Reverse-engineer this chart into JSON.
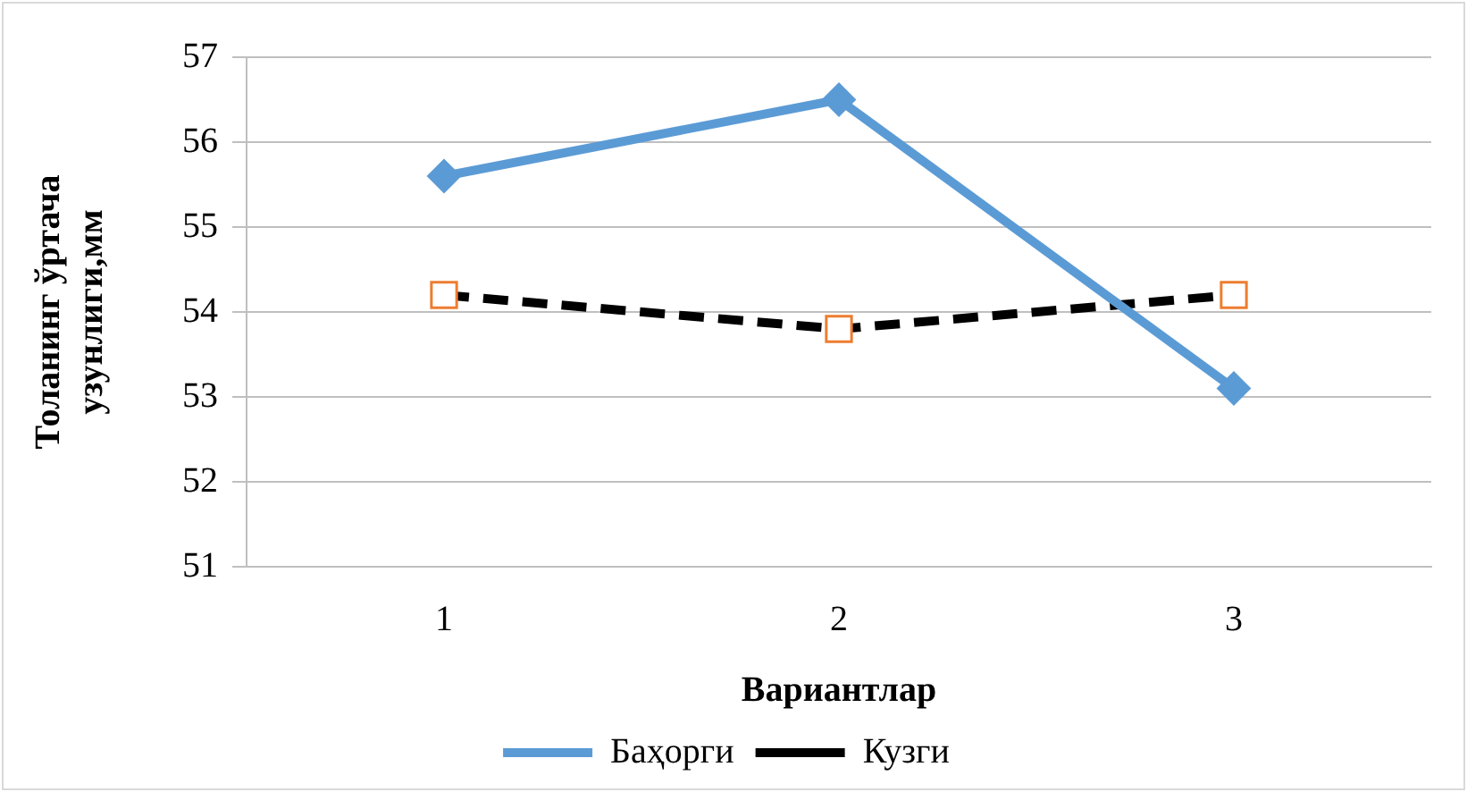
{
  "chart_data": {
    "type": "line",
    "xlabel": "Вариантлар",
    "ylabel": "Толанинг ўртача узунлиги,мм",
    "categories": [
      "1",
      "2",
      "3"
    ],
    "series": [
      {
        "name": "Баҳорги",
        "color": "#5b9bd5",
        "values": [
          55.6,
          56.5,
          53.1
        ],
        "marker": "diamond",
        "line_style": "solid"
      },
      {
        "name": "Кузги",
        "color": "#000000",
        "values": [
          54.2,
          53.8,
          54.2
        ],
        "marker": "square",
        "line_style": "dashed"
      }
    ],
    "ylim": [
      51,
      57
    ],
    "yticks": [
      51,
      52,
      53,
      54,
      55,
      56,
      57
    ],
    "grid": "y",
    "legend": "bottom"
  }
}
